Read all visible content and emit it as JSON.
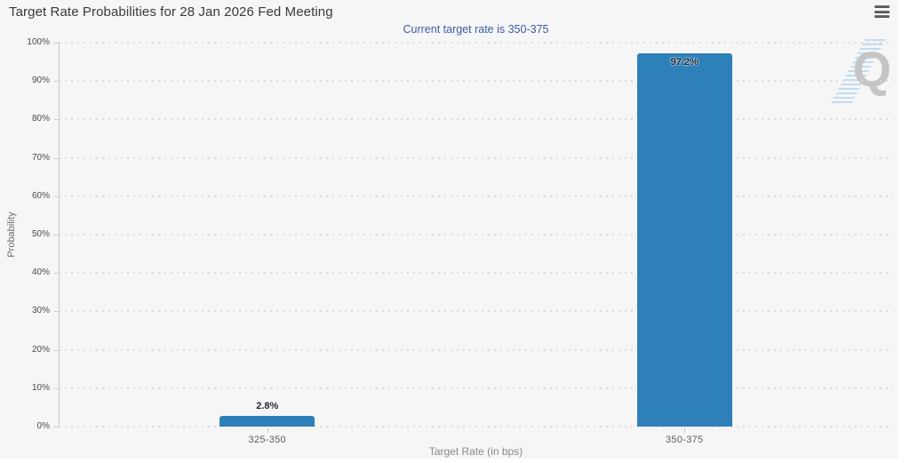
{
  "header": {
    "title": "Target Rate Probabilities for 28 Jan 2026 Fed Meeting",
    "subtitle": "Current target rate is 350-375",
    "menu_icon": "hamburger-menu-icon"
  },
  "watermark": {
    "letter": "Q"
  },
  "colors": {
    "bar": "#2e80b9",
    "subtitle_text": "#3a5da8",
    "panel_background": "#f6f6f6",
    "grid_dots": "#dcdcdc",
    "axis_line": "#c9c9c9"
  },
  "chart_data": {
    "type": "bar",
    "title": "Target Rate Probabilities for 28 Jan 2026 Fed Meeting",
    "subtitle": "Current target rate is 350-375",
    "categories": [
      "325-350",
      "350-375"
    ],
    "values": [
      2.8,
      97.2
    ],
    "value_labels": [
      "2.8%",
      "97.2%"
    ],
    "xlabel": "Target Rate (in bps)",
    "ylabel": "Probability",
    "ylim": [
      0,
      100
    ],
    "ytick_step": 10,
    "ytick_suffix": "%",
    "grid": "horizontal-dotted",
    "legend": "none",
    "bar_color": "#2e80b9"
  }
}
